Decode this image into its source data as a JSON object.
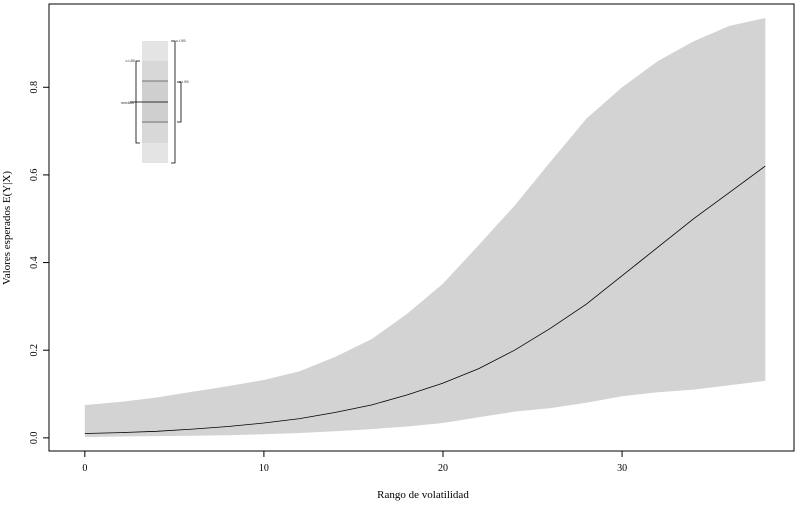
{
  "chart_data": {
    "type": "area",
    "title": "",
    "xlabel": "Rango de volatilidad",
    "ylabel": "Valores esperados E(Y|X)",
    "xlim": [
      -2,
      39.6
    ],
    "ylim": [
      -0.03,
      0.99
    ],
    "xticks": [
      0,
      10,
      20,
      30
    ],
    "yticks": [
      0.0,
      0.2,
      0.4,
      0.6,
      0.8
    ],
    "grid": false,
    "band_color": "#d3d3d3",
    "line_color": "#000000",
    "series": [
      {
        "name": "",
        "x": [
          0,
          2,
          4,
          6,
          8,
          10,
          12,
          14,
          16,
          18,
          20,
          22,
          24,
          26,
          28,
          30,
          32,
          34,
          36,
          38
        ],
        "y": [
          0.01,
          0.012,
          0.015,
          0.02,
          0.026,
          0.034,
          0.044,
          0.058,
          0.075,
          0.098,
          0.125,
          0.158,
          0.2,
          0.25,
          0.305,
          0.37,
          0.435,
          0.5,
          0.56,
          0.62
        ],
        "lower": [
          0.002,
          0.003,
          0.004,
          0.005,
          0.006,
          0.008,
          0.011,
          0.015,
          0.02,
          0.026,
          0.034,
          0.047,
          0.06,
          0.068,
          0.08,
          0.095,
          0.104,
          0.11,
          0.12,
          0.13
        ],
        "upper": [
          0.075,
          0.082,
          0.092,
          0.105,
          0.118,
          0.132,
          0.152,
          0.185,
          0.225,
          0.283,
          0.352,
          0.44,
          0.53,
          0.63,
          0.728,
          0.8,
          0.86,
          0.905,
          0.94,
          0.958
        ]
      }
    ],
    "legend": {
      "placement": "top-left",
      "labels": {
        "outer": "c.i.95",
        "mid": "c.i.80",
        "inner": "c.i.95",
        "median": "median"
      }
    }
  }
}
